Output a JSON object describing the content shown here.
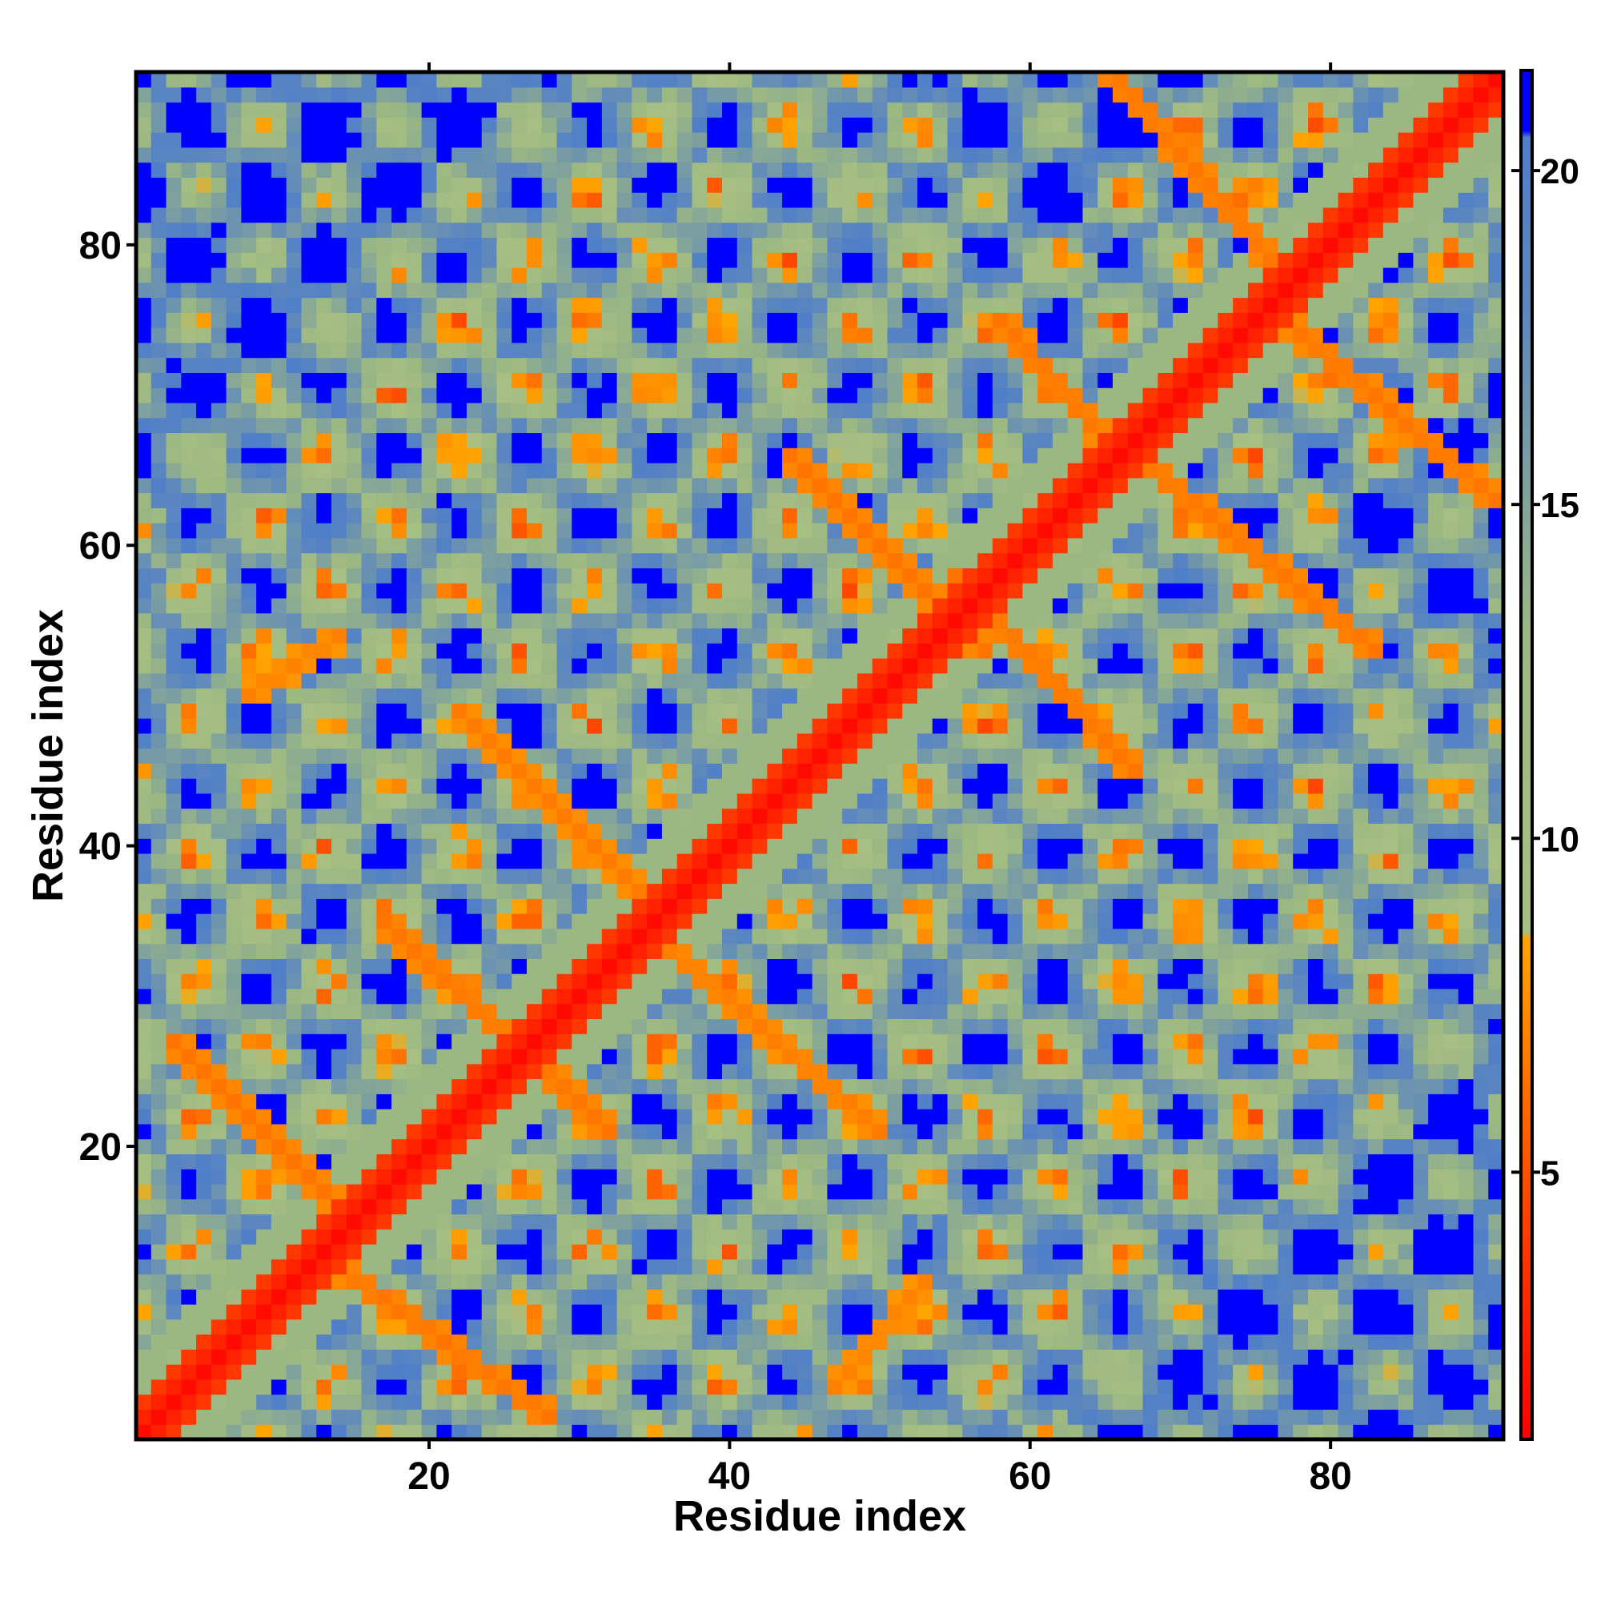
{
  "chart_data": {
    "type": "heatmap",
    "title": "",
    "xlabel": "Residue index",
    "ylabel": "Residue index",
    "n_residues": 91,
    "xlim": [
      1,
      91
    ],
    "ylim": [
      1,
      91
    ],
    "x_ticks": [
      20,
      40,
      60,
      80
    ],
    "y_ticks": [
      20,
      40,
      60,
      80
    ],
    "x_tick_labels": [
      "20",
      "40",
      "60",
      "80"
    ],
    "y_tick_labels": [
      "20",
      "40",
      "60",
      "80"
    ],
    "colorbar": {
      "range": [
        1,
        21.5
      ],
      "ticks": [
        5,
        10,
        15,
        20
      ],
      "tick_labels": [
        "5",
        "10",
        "15",
        "20"
      ],
      "stops": [
        {
          "value": 1,
          "color": "#ff0000"
        },
        {
          "value": 4.5,
          "color": "#ff4400"
        },
        {
          "value": 8.5,
          "color": "#ffa500"
        },
        {
          "value": 8.6,
          "color": "#a7bf82"
        },
        {
          "value": 13,
          "color": "#9cb882"
        },
        {
          "value": 18,
          "color": "#5b86c0"
        },
        {
          "value": 20.5,
          "color": "#4f7fc8"
        },
        {
          "value": 20.6,
          "color": "#0000ff"
        },
        {
          "value": 21.5,
          "color": "#0000ff"
        }
      ]
    },
    "structure": {
      "description_free_params": true,
      "helix_period": 8.8,
      "far_distance_value": 21.5,
      "offdiag_contacts": [
        {
          "from": [
            3,
            27
          ],
          "to": [
            16,
            14
          ],
          "value": 6.5
        },
        {
          "from": [
            14,
            12
          ],
          "to": [
            28,
            2
          ],
          "value": 6.5
        },
        {
          "from": [
            17,
            35
          ],
          "to": [
            32,
            21
          ],
          "value": 6.5
        },
        {
          "from": [
            22,
            49
          ],
          "to": [
            34,
            37
          ],
          "value": 6.8
        },
        {
          "from": [
            34,
            35
          ],
          "to": [
            50,
            21
          ],
          "value": 6.8
        },
        {
          "from": [
            44,
            66
          ],
          "to": [
            57,
            53
          ],
          "value": 6.5
        },
        {
          "from": [
            55,
            58
          ],
          "to": [
            67,
            45
          ],
          "value": 6.5
        },
        {
          "from": [
            64,
            93
          ],
          "to": [
            77,
            78
          ],
          "value": 6.5
        },
        {
          "from": [
            67,
            66
          ],
          "to": [
            83,
            53
          ],
          "value": 6.5
        },
        {
          "from": [
            77,
            75
          ],
          "to": [
            91,
            63
          ],
          "value": 6.5
        },
        {
          "from": [
            58,
            75
          ],
          "to": [
            66,
            66
          ],
          "value": 6.5
        },
        {
          "from": [
            8,
            50
          ],
          "to": [
            14,
            54
          ],
          "value": 7.0
        },
        {
          "from": [
            47,
            4
          ],
          "to": [
            53,
            11
          ],
          "value": 7.0
        }
      ]
    }
  }
}
